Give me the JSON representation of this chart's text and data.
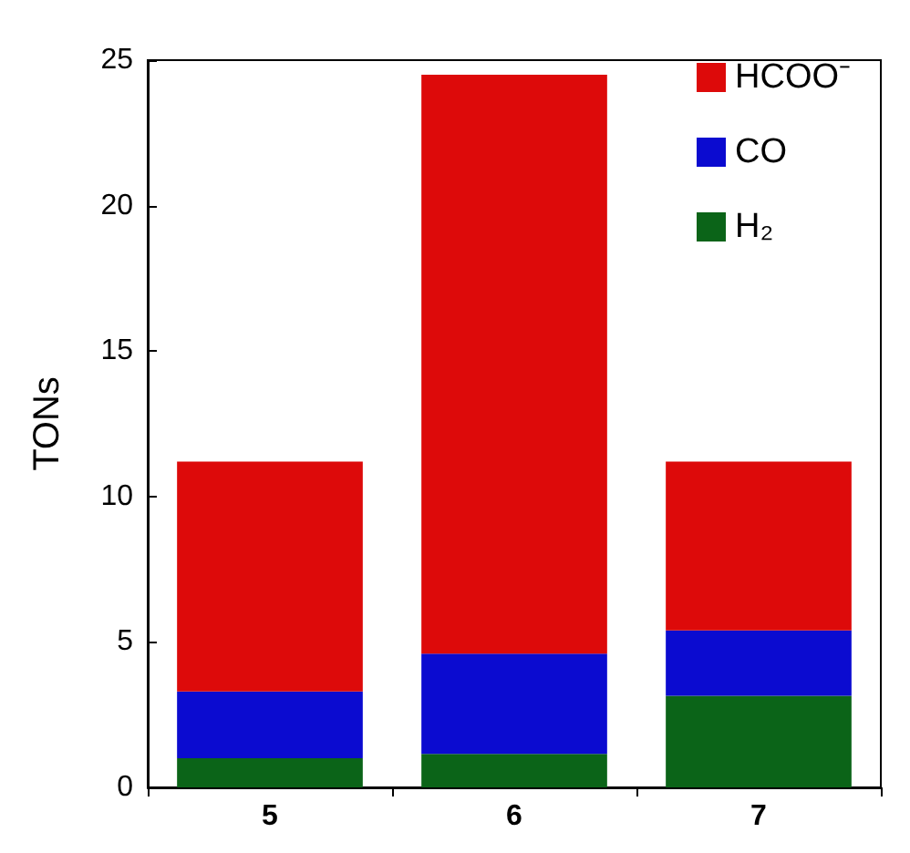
{
  "chart_data": {
    "type": "bar",
    "stacked": true,
    "ylabel": "TONs",
    "categories": [
      "5",
      "6",
      "7"
    ],
    "series": [
      {
        "name": "H₂",
        "color": "#0b6418",
        "values": [
          1.0,
          1.15,
          3.15
        ]
      },
      {
        "name": "CO",
        "color": "#0b0bd0",
        "values": [
          2.3,
          3.45,
          2.25
        ]
      },
      {
        "name": "HCOO⁻",
        "color": "#dd0a0a",
        "values": [
          7.9,
          19.9,
          5.8
        ]
      }
    ],
    "ylim": [
      0,
      25
    ],
    "yticks": [
      0,
      5,
      10,
      15,
      20,
      25
    ],
    "grid": false,
    "legend": "top right"
  }
}
